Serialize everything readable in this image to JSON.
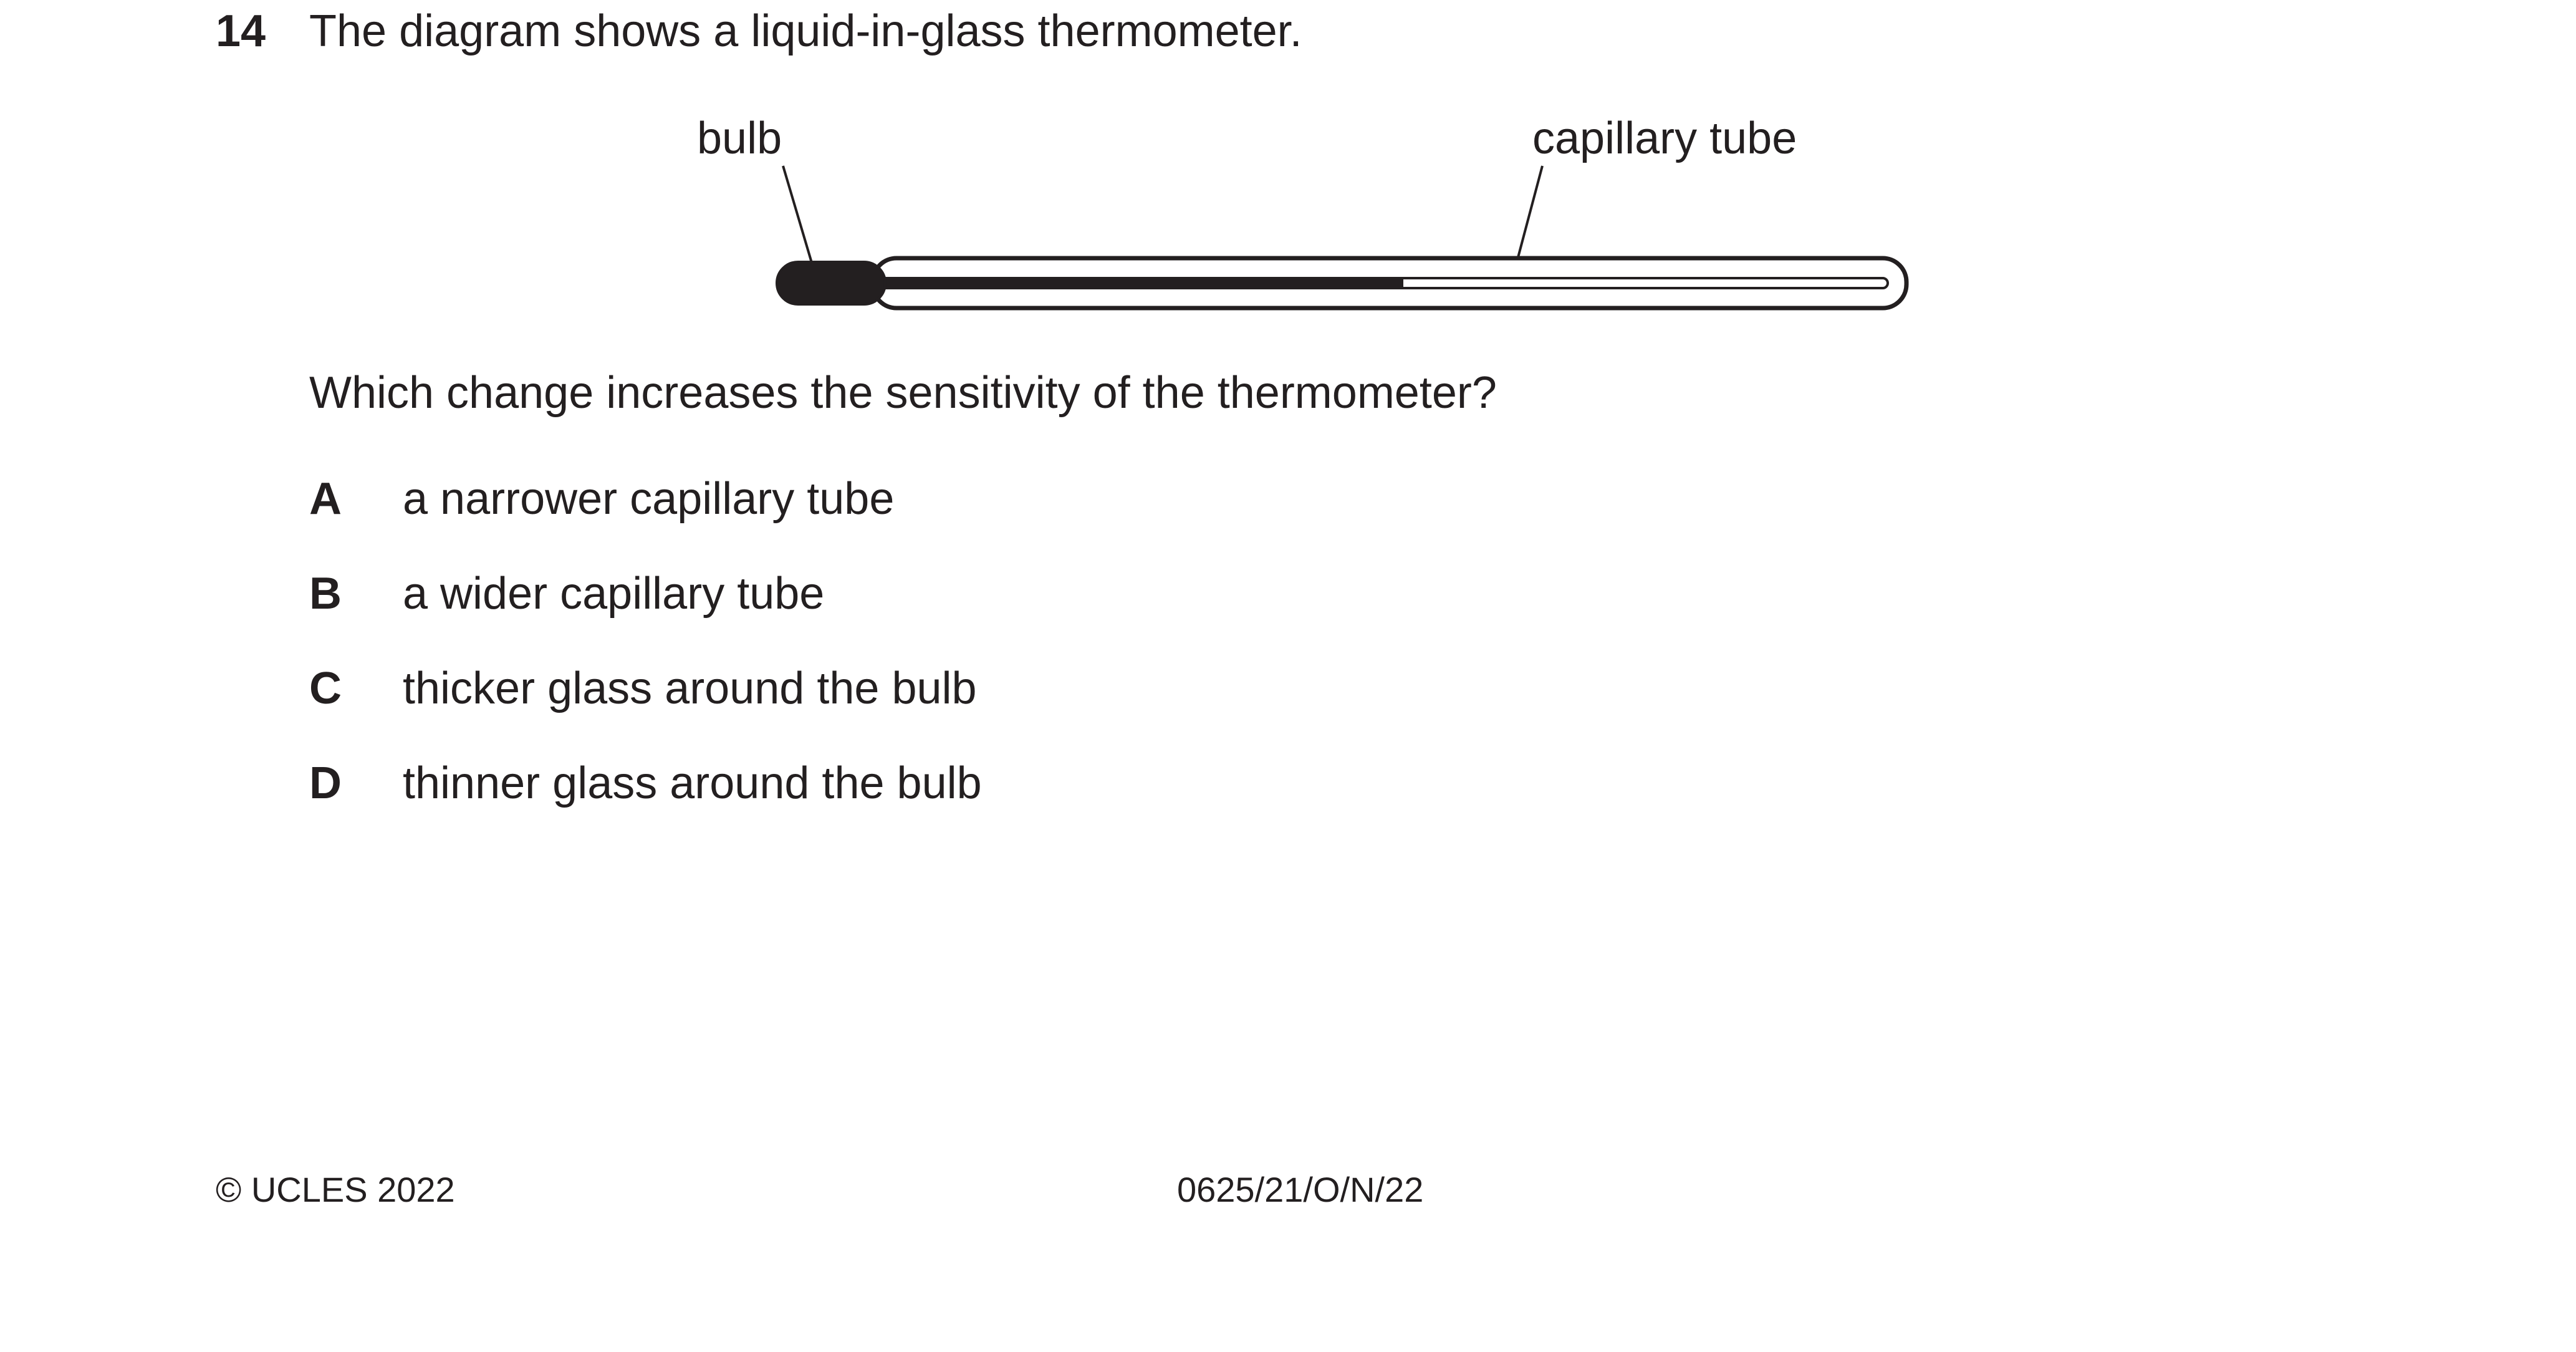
{
  "question": {
    "number": "14",
    "stem": "The diagram shows a liquid-in-glass thermometer.",
    "prompt": "Which change increases the sensitivity of the thermometer?"
  },
  "diagram": {
    "labels": {
      "bulb": "bulb",
      "capillary_tube": "capillary tube"
    },
    "liquid_fill_fraction": 0.52
  },
  "options": [
    {
      "letter": "A",
      "text": "a narrower capillary tube"
    },
    {
      "letter": "B",
      "text": "a wider capillary tube"
    },
    {
      "letter": "C",
      "text": "thicker glass around the bulb"
    },
    {
      "letter": "D",
      "text": "thinner glass around the bulb"
    }
  ],
  "footer": {
    "copyright": "© UCLES 2022",
    "paper_code": "0625/21/O/N/22"
  }
}
